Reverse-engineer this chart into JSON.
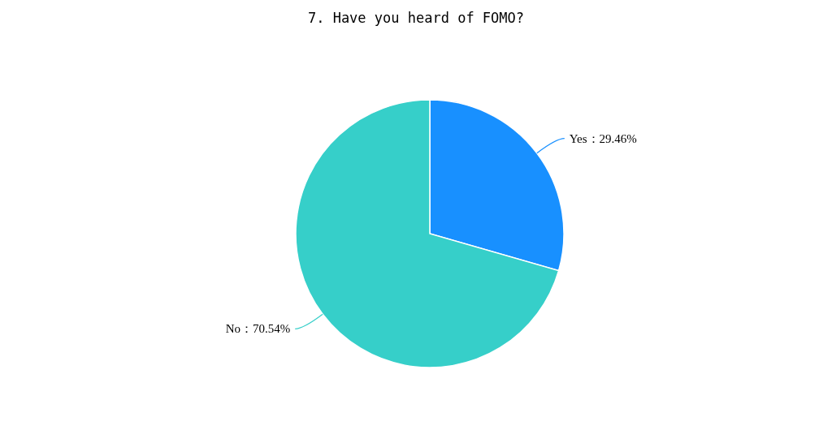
{
  "chart_data": {
    "type": "pie",
    "title": "7. Have you heard of FOMO?",
    "categories": [
      "Yes",
      "No"
    ],
    "values": [
      29.46,
      70.54
    ],
    "colors": [
      "#1890ff",
      "#36cfc9"
    ],
    "value_labels": [
      "：29.46%",
      "：70.54%"
    ]
  }
}
